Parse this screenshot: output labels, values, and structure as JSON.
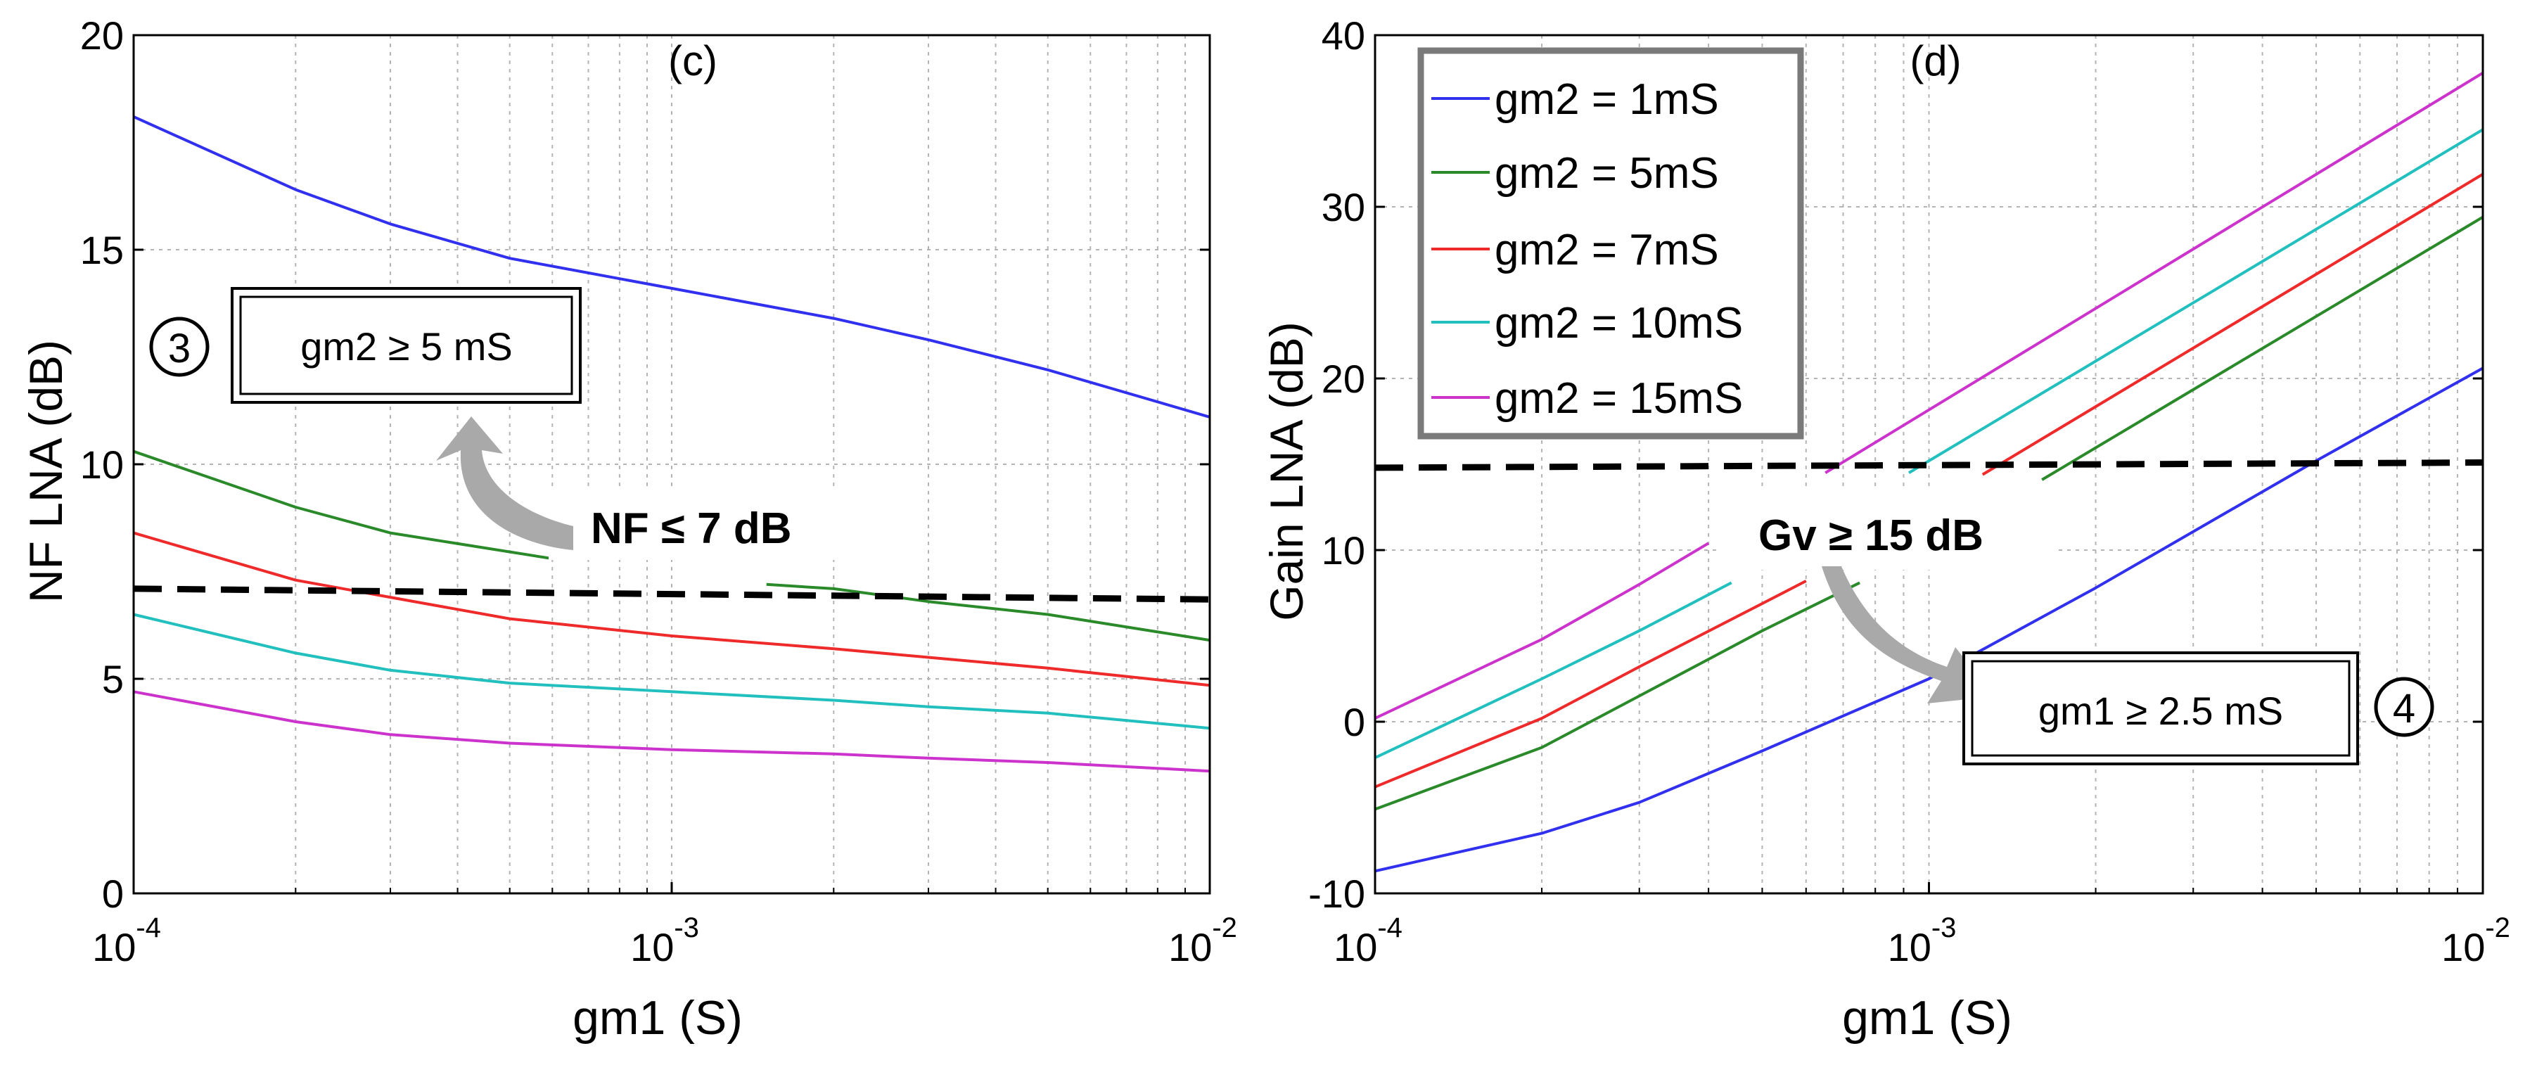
{
  "colors": {
    "blue": "#3030ee",
    "green": "#2a8a2a",
    "red": "#ee2a2a",
    "cyan": "#22bfbf",
    "magenta": "#cc33cc",
    "grid": "#b4b4b4",
    "threshold": "#000000",
    "arrow": "#a9a9a9"
  },
  "chart_data": [
    {
      "type": "line",
      "panel_label": "(c)",
      "xlabel": "gm1 (S)",
      "ylabel": "NF LNA (dB)",
      "xscale": "log",
      "xlim": [
        0.0001,
        0.01
      ],
      "ylim": [
        0,
        20
      ],
      "y_ticks": [
        0,
        5,
        10,
        15,
        20
      ],
      "x_tick_labels": [
        {
          "base": "10",
          "exp": "-4",
          "value": 0.0001
        },
        {
          "base": "10",
          "exp": "-3",
          "value": 0.001
        },
        {
          "base": "10",
          "exp": "-2",
          "value": 0.01
        }
      ],
      "grid": true,
      "x": [
        0.0001,
        0.0002,
        0.0003,
        0.0005,
        0.001,
        0.002,
        0.003,
        0.005,
        0.01
      ],
      "series": [
        {
          "name": "gm2 = 1mS",
          "color_key": "blue",
          "values": [
            18.1,
            16.4,
            15.6,
            14.8,
            14.1,
            13.4,
            12.9,
            12.2,
            11.1
          ]
        },
        {
          "name": "gm2 = 5mS",
          "color_key": "green",
          "segments": [
            {
              "x": [
                0.0001,
                0.0002,
                0.0003,
                0.0006
              ],
              "y": [
                10.3,
                9.0,
                8.4,
                7.8
              ]
            },
            {
              "x": [
                0.0015,
                0.002,
                0.003,
                0.005,
                0.01
              ],
              "y": [
                7.2,
                7.1,
                6.8,
                6.5,
                5.9
              ]
            }
          ]
        },
        {
          "name": "gm2 = 7mS",
          "color_key": "red",
          "values": [
            8.4,
            7.3,
            6.9,
            6.4,
            6.0,
            5.7,
            5.5,
            5.25,
            4.85
          ]
        },
        {
          "name": "gm2 = 10mS",
          "color_key": "cyan",
          "values": [
            6.5,
            5.6,
            5.2,
            4.9,
            4.7,
            4.5,
            4.35,
            4.2,
            3.85
          ]
        },
        {
          "name": "gm2 = 15mS",
          "color_key": "magenta",
          "values": [
            4.7,
            4.0,
            3.7,
            3.5,
            3.35,
            3.25,
            3.15,
            3.05,
            2.85
          ]
        }
      ],
      "threshold": {
        "label": "NF ≤ 7 dB",
        "y_start": 7.1,
        "y_end": 6.85
      },
      "callout": {
        "number": "3",
        "text": "gm2 ≥ 5 mS"
      }
    },
    {
      "type": "line",
      "panel_label": "(d)",
      "xlabel": "gm1 (S)",
      "ylabel": "Gain LNA (dB)",
      "xscale": "log",
      "xlim": [
        0.0001,
        0.01
      ],
      "ylim": [
        -10,
        40
      ],
      "y_ticks": [
        -10,
        0,
        10,
        20,
        30,
        40
      ],
      "x_tick_labels": [
        {
          "base": "10",
          "exp": "-4",
          "value": 0.0001
        },
        {
          "base": "10",
          "exp": "-3",
          "value": 0.001
        },
        {
          "base": "10",
          "exp": "-2",
          "value": 0.01
        }
      ],
      "grid": true,
      "legend": {
        "position": "top-left",
        "entries": [
          {
            "label": "gm2 = 1mS",
            "color_key": "blue"
          },
          {
            "label": "gm2 = 5mS",
            "color_key": "green"
          },
          {
            "label": "gm2 = 7mS",
            "color_key": "red"
          },
          {
            "label": "gm2 = 10mS",
            "color_key": "cyan"
          },
          {
            "label": "gm2 = 15mS",
            "color_key": "magenta"
          }
        ]
      },
      "series": [
        {
          "name": "gm2 = 1mS",
          "color_key": "blue",
          "segments": [
            {
              "x": [
                0.0001,
                0.0002,
                0.0003,
                0.0005,
                0.001,
                0.002,
                0.005,
                0.01
              ],
              "y": [
                -8.7,
                -6.5,
                -4.7,
                -1.7,
                2.5,
                7.8,
                15.2,
                20.6
              ]
            }
          ]
        },
        {
          "name": "gm2 = 5mS",
          "color_key": "green",
          "segments": [
            {
              "x": [
                0.0001,
                0.0002,
                0.0003,
                0.0005,
                0.00075
              ],
              "y": [
                -5.1,
                -1.5,
                1.5,
                5.3,
                8.1
              ]
            },
            {
              "x": [
                0.0016,
                0.01
              ],
              "y": [
                14.1,
                29.4
              ]
            }
          ]
        },
        {
          "name": "gm2 = 7mS",
          "color_key": "red",
          "segments": [
            {
              "x": [
                0.0001,
                0.0002,
                0.0003,
                0.0006
              ],
              "y": [
                -3.8,
                0.2,
                3.2,
                8.2
              ]
            },
            {
              "x": [
                0.00125,
                0.01
              ],
              "y": [
                14.4,
                31.9
              ]
            }
          ]
        },
        {
          "name": "gm2 = 10mS",
          "color_key": "cyan",
          "segments": [
            {
              "x": [
                0.0001,
                0.0002,
                0.0003,
                0.00044
              ],
              "y": [
                -2.1,
                2.5,
                5.3,
                8.1
              ]
            },
            {
              "x": [
                0.00092,
                0.01
              ],
              "y": [
                14.5,
                34.5
              ]
            }
          ]
        },
        {
          "name": "gm2 = 15mS",
          "color_key": "magenta",
          "segments": [
            {
              "x": [
                0.0001,
                0.0002,
                0.0003,
                0.0004
              ],
              "y": [
                0.2,
                4.8,
                8.0,
                10.4
              ]
            },
            {
              "x": [
                0.00065,
                0.01
              ],
              "y": [
                14.5,
                37.8
              ]
            }
          ]
        }
      ],
      "threshold": {
        "label": "Gv ≥ 15 dB",
        "y_start": 14.8,
        "y_end": 15.1
      },
      "callout": {
        "number": "4",
        "text": "gm1 ≥ 2.5 mS"
      }
    }
  ]
}
